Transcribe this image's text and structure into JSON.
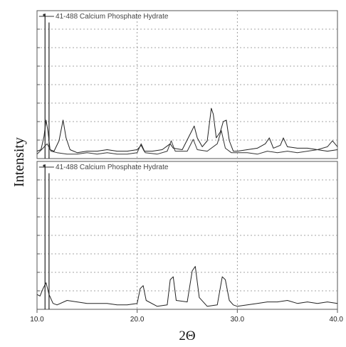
{
  "chart_data": {
    "type": "line",
    "ylabel": "Intensity",
    "xlabel": "2Θ",
    "xlim": [
      10,
      40
    ],
    "x_ticks": [
      10,
      20,
      30,
      40
    ],
    "x_tick_labels": [
      "10.0",
      "20.0",
      "30.0",
      "40.0"
    ],
    "grid": true,
    "reference_pattern_label": "41-488 Calcium Phosphate Hydrate",
    "panels": [
      {
        "name": "top",
        "reference_sticks": [
          {
            "x": 10.8,
            "y": 0.98
          },
          {
            "x": 11.2,
            "y": 0.92
          }
        ],
        "series": [
          {
            "name": "",
            "points": [
              [
                10,
                0.05
              ],
              [
                10.4,
                0.06
              ],
              [
                10.7,
                0.15
              ],
              [
                10.9,
                0.26
              ],
              [
                11.1,
                0.18
              ],
              [
                11.3,
                0.06
              ],
              [
                11.7,
                0.05
              ],
              [
                12.2,
                0.12
              ],
              [
                12.6,
                0.26
              ],
              [
                12.9,
                0.14
              ],
              [
                13.3,
                0.06
              ],
              [
                14,
                0.04
              ],
              [
                15,
                0.05
              ],
              [
                16,
                0.05
              ],
              [
                17,
                0.06
              ],
              [
                18,
                0.05
              ],
              [
                19,
                0.05
              ],
              [
                20,
                0.06
              ],
              [
                20.4,
                0.09
              ],
              [
                20.7,
                0.05
              ],
              [
                21.5,
                0.05
              ],
              [
                22.5,
                0.06
              ],
              [
                23.3,
                0.1
              ],
              [
                23.6,
                0.07
              ],
              [
                24.5,
                0.06
              ],
              [
                25.4,
                0.18
              ],
              [
                25.7,
                0.22
              ],
              [
                26,
                0.14
              ],
              [
                26.5,
                0.08
              ],
              [
                27,
                0.12
              ],
              [
                27.4,
                0.34
              ],
              [
                27.6,
                0.3
              ],
              [
                27.9,
                0.14
              ],
              [
                28.3,
                0.18
              ],
              [
                28.6,
                0.25
              ],
              [
                28.9,
                0.26
              ],
              [
                29.2,
                0.12
              ],
              [
                29.6,
                0.05
              ],
              [
                30,
                0.05
              ],
              [
                31,
                0.06
              ],
              [
                32,
                0.07
              ],
              [
                32.8,
                0.1
              ],
              [
                33.2,
                0.14
              ],
              [
                33.6,
                0.07
              ],
              [
                34.3,
                0.09
              ],
              [
                34.6,
                0.14
              ],
              [
                35,
                0.08
              ],
              [
                36,
                0.07
              ],
              [
                37,
                0.07
              ],
              [
                38,
                0.06
              ],
              [
                39,
                0.05
              ],
              [
                40,
                0.06
              ]
            ]
          },
          {
            "name": "",
            "points": [
              [
                10,
                0.03
              ],
              [
                10.6,
                0.07
              ],
              [
                11,
                0.1
              ],
              [
                11.4,
                0.05
              ],
              [
                12,
                0.04
              ],
              [
                13,
                0.03
              ],
              [
                14,
                0.03
              ],
              [
                15,
                0.04
              ],
              [
                16,
                0.03
              ],
              [
                17,
                0.04
              ],
              [
                18,
                0.03
              ],
              [
                19,
                0.03
              ],
              [
                20,
                0.04
              ],
              [
                20.4,
                0.1
              ],
              [
                20.8,
                0.04
              ],
              [
                22,
                0.03
              ],
              [
                23,
                0.05
              ],
              [
                23.4,
                0.12
              ],
              [
                23.8,
                0.05
              ],
              [
                25,
                0.05
              ],
              [
                25.6,
                0.13
              ],
              [
                26,
                0.06
              ],
              [
                27,
                0.05
              ],
              [
                28,
                0.1
              ],
              [
                28.4,
                0.19
              ],
              [
                28.8,
                0.07
              ],
              [
                29.4,
                0.04
              ],
              [
                30,
                0.04
              ],
              [
                31,
                0.04
              ],
              [
                32,
                0.03
              ],
              [
                33,
                0.05
              ],
              [
                34,
                0.04
              ],
              [
                35,
                0.05
              ],
              [
                36,
                0.04
              ],
              [
                37,
                0.05
              ],
              [
                38,
                0.06
              ],
              [
                39,
                0.08
              ],
              [
                39.5,
                0.12
              ],
              [
                40,
                0.08
              ]
            ]
          }
        ]
      },
      {
        "name": "bottom",
        "reference_sticks": [
          {
            "x": 10.8,
            "y": 0.98
          },
          {
            "x": 11.2,
            "y": 0.92
          }
        ],
        "series": [
          {
            "name": "",
            "points": [
              [
                10,
                0.1
              ],
              [
                10.3,
                0.09
              ],
              [
                10.6,
                0.14
              ],
              [
                10.9,
                0.18
              ],
              [
                11.2,
                0.1
              ],
              [
                11.6,
                0.04
              ],
              [
                12,
                0.03
              ],
              [
                13,
                0.06
              ],
              [
                14,
                0.05
              ],
              [
                15,
                0.04
              ],
              [
                16,
                0.04
              ],
              [
                17,
                0.04
              ],
              [
                18,
                0.03
              ],
              [
                19,
                0.03
              ],
              [
                20,
                0.04
              ],
              [
                20.3,
                0.14
              ],
              [
                20.6,
                0.16
              ],
              [
                20.9,
                0.06
              ],
              [
                22,
                0.02
              ],
              [
                23,
                0.03
              ],
              [
                23.3,
                0.2
              ],
              [
                23.6,
                0.22
              ],
              [
                23.9,
                0.06
              ],
              [
                25,
                0.05
              ],
              [
                25.5,
                0.26
              ],
              [
                25.8,
                0.29
              ],
              [
                26.2,
                0.08
              ],
              [
                27,
                0.02
              ],
              [
                28,
                0.03
              ],
              [
                28.5,
                0.22
              ],
              [
                28.8,
                0.2
              ],
              [
                29.2,
                0.06
              ],
              [
                29.6,
                0.03
              ],
              [
                30,
                0.02
              ],
              [
                31,
                0.03
              ],
              [
                32,
                0.04
              ],
              [
                33,
                0.05
              ],
              [
                34,
                0.05
              ],
              [
                35,
                0.06
              ],
              [
                36,
                0.04
              ],
              [
                37,
                0.05
              ],
              [
                38,
                0.04
              ],
              [
                39,
                0.05
              ],
              [
                40,
                0.04
              ]
            ]
          }
        ]
      }
    ]
  }
}
